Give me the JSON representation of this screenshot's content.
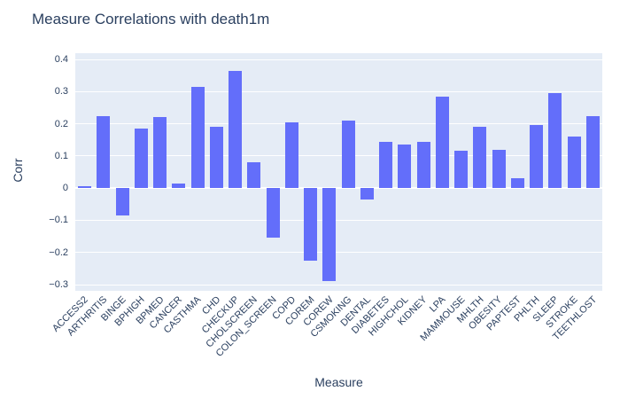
{
  "chart_data": {
    "type": "bar",
    "title": "Measure Correlations with death1m",
    "xlabel": "Measure",
    "ylabel": "Corr",
    "ylim": [
      -0.3,
      0.4
    ],
    "ytick_step": 0.1,
    "grid": true,
    "bar_color": "#636efa",
    "plot_bg": "#e5ecf6",
    "grid_color": "#ffffff",
    "text_color": "#2a3f5f",
    "categories": [
      "ACCESS2",
      "ARTHRITIS",
      "BINGE",
      "BPHIGH",
      "BPMED",
      "CANCER",
      "CASTHMA",
      "CHD",
      "CHECKUP",
      "CHOLSCREEN",
      "COLON_SCREEN",
      "COPD",
      "COREM",
      "COREW",
      "CSMOKING",
      "DENTAL",
      "DIABETES",
      "HIGHCHOL",
      "KIDNEY",
      "LPA",
      "MAMMOUSE",
      "MHLTH",
      "OBESITY",
      "PAPTEST",
      "PHLTH",
      "SLEEP",
      "STROKE",
      "TEETHLOST"
    ],
    "values": [
      0.005,
      0.225,
      -0.085,
      0.185,
      0.22,
      0.015,
      0.315,
      0.19,
      0.365,
      0.08,
      -0.155,
      0.205,
      -0.225,
      -0.29,
      0.21,
      -0.035,
      0.145,
      0.135,
      0.145,
      0.285,
      0.115,
      0.19,
      0.12,
      0.03,
      0.195,
      0.295,
      0.16,
      0.225
    ]
  }
}
